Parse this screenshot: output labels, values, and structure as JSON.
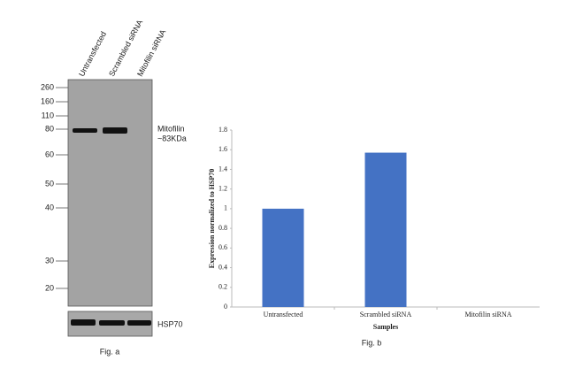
{
  "blot": {
    "lanes": [
      "Untransfected",
      "Scrambled siRNA",
      "Mitofilin siRNA"
    ],
    "markers": [
      260,
      160,
      110,
      80,
      60,
      50,
      40,
      30,
      20
    ],
    "target_label": "Mitofilin",
    "target_size": "~83KDa",
    "loading_label": "HSP70",
    "caption": "Fig. a"
  },
  "chart_data": {
    "type": "bar",
    "categories": [
      "Untransfected",
      "Scrambled siRNA",
      "Mitofilin siRNA"
    ],
    "values": [
      1,
      1.57,
      0
    ],
    "color": "#4472c4",
    "ylim": [
      0,
      1.8
    ],
    "yticks": [
      0,
      0.2,
      0.4,
      0.6,
      0.8,
      1,
      1.2,
      1.4,
      1.6,
      1.8
    ],
    "ylabel": "Expression normalized to HSP70",
    "xlabel": "Samples",
    "caption": "Fig. b"
  }
}
